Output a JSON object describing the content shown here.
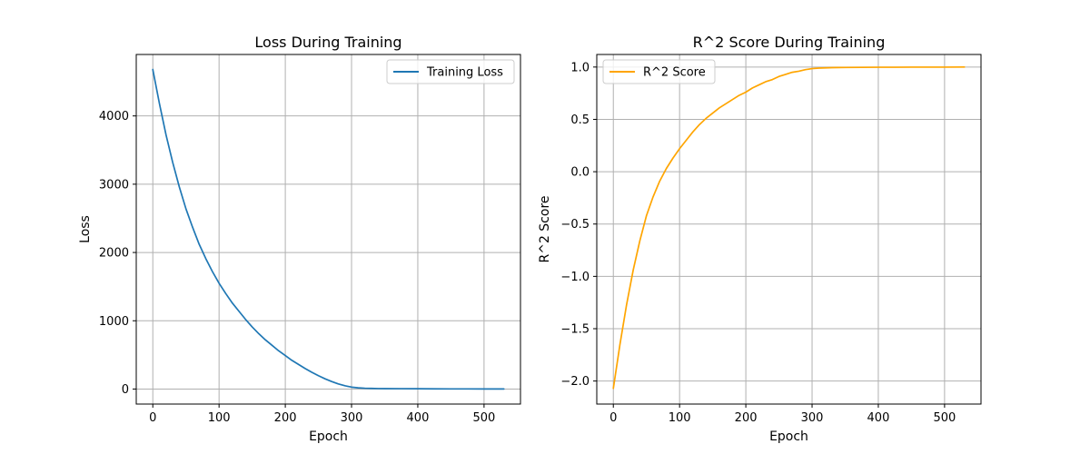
{
  "chart_data": [
    {
      "type": "line",
      "title": "Loss During Training",
      "xlabel": "Epoch",
      "ylabel": "Loss",
      "xlim": [
        -25,
        555
      ],
      "ylim": [
        -220,
        4900
      ],
      "xticks": [
        0,
        100,
        200,
        300,
        400,
        500
      ],
      "yticks": [
        0,
        1000,
        2000,
        3000,
        4000
      ],
      "xtick_labels": [
        "0",
        "100",
        "200",
        "300",
        "400",
        "500"
      ],
      "ytick_labels": [
        "0",
        "1000",
        "2000",
        "3000",
        "4000"
      ],
      "grid": true,
      "legend_position": "upper right",
      "series": [
        {
          "name": "Training Loss",
          "color": "#1f77b4",
          "x": [
            0,
            10,
            20,
            30,
            40,
            50,
            60,
            70,
            80,
            90,
            100,
            110,
            120,
            130,
            140,
            150,
            160,
            170,
            180,
            190,
            200,
            210,
            220,
            230,
            240,
            250,
            260,
            270,
            280,
            290,
            300,
            310,
            320,
            330,
            340,
            350,
            375,
            400,
            425,
            450,
            475,
            500,
            530
          ],
          "y": [
            4680,
            4180,
            3720,
            3320,
            2960,
            2640,
            2370,
            2120,
            1910,
            1720,
            1550,
            1400,
            1260,
            1140,
            1020,
            910,
            810,
            720,
            640,
            560,
            490,
            420,
            360,
            300,
            245,
            195,
            150,
            110,
            75,
            48,
            28,
            18,
            12,
            9,
            7,
            6,
            5,
            4,
            3,
            2,
            2,
            1,
            1
          ]
        }
      ]
    },
    {
      "type": "line",
      "title": "R^2 Score During Training",
      "xlabel": "Epoch",
      "ylabel": "R^2 Score",
      "xlim": [
        -25,
        555
      ],
      "ylim": [
        -2.22,
        1.12
      ],
      "xticks": [
        0,
        100,
        200,
        300,
        400,
        500
      ],
      "yticks": [
        -2.0,
        -1.5,
        -1.0,
        -0.5,
        0.0,
        0.5,
        1.0
      ],
      "xtick_labels": [
        "0",
        "100",
        "200",
        "300",
        "400",
        "500"
      ],
      "ytick_labels": [
        "−2.0",
        "−1.5",
        "−1.0",
        "−0.5",
        "0.0",
        "0.5",
        "1.0"
      ],
      "grid": true,
      "legend_position": "upper left",
      "series": [
        {
          "name": "R^2 Score",
          "color": "#ffa500",
          "x": [
            0,
            10,
            20,
            30,
            40,
            50,
            60,
            70,
            80,
            90,
            100,
            110,
            120,
            130,
            140,
            150,
            160,
            170,
            180,
            190,
            200,
            210,
            220,
            230,
            240,
            250,
            260,
            270,
            280,
            290,
            300,
            310,
            320,
            330,
            340,
            350,
            375,
            400,
            425,
            450,
            475,
            500,
            530
          ],
          "y": [
            -2.07,
            -1.65,
            -1.27,
            -0.94,
            -0.66,
            -0.42,
            -0.24,
            -0.09,
            0.03,
            0.13,
            0.22,
            0.3,
            0.38,
            0.45,
            0.51,
            0.56,
            0.61,
            0.65,
            0.69,
            0.73,
            0.76,
            0.8,
            0.83,
            0.86,
            0.88,
            0.91,
            0.93,
            0.95,
            0.96,
            0.975,
            0.985,
            0.99,
            0.992,
            0.994,
            0.995,
            0.996,
            0.997,
            0.998,
            0.998,
            0.999,
            0.999,
            0.999,
            1.0
          ]
        }
      ]
    }
  ]
}
